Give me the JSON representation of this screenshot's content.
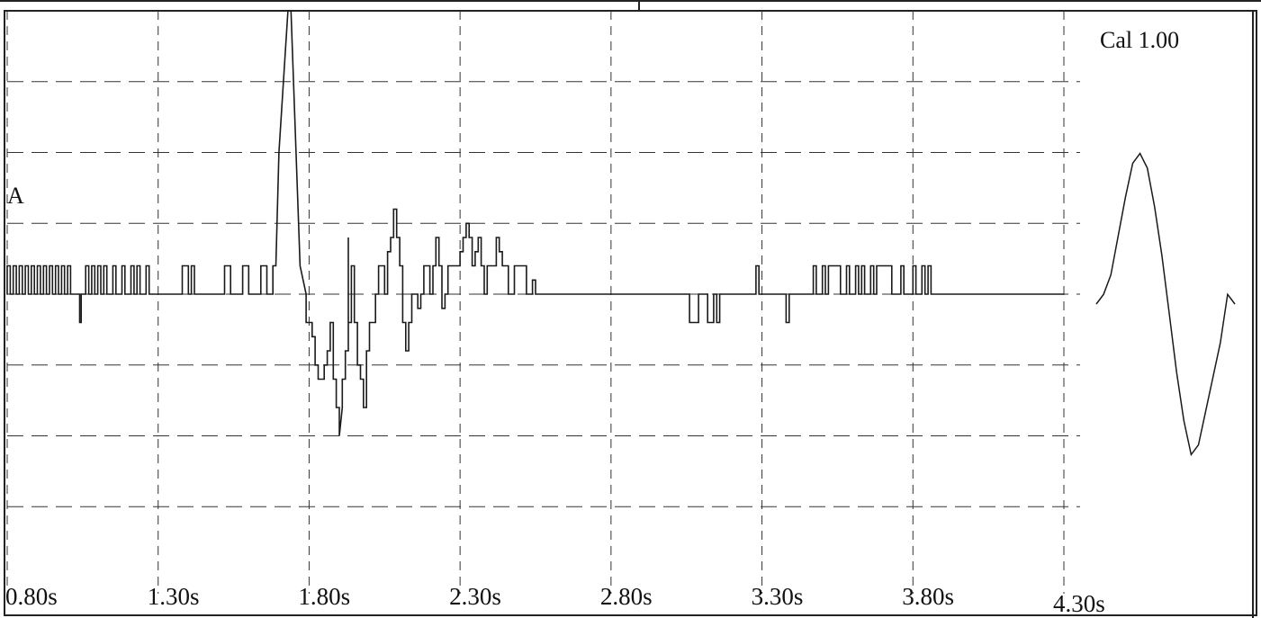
{
  "chart_data": {
    "type": "line",
    "trace_label": "A",
    "calibration_label": "Cal 1.00",
    "x_unit": "s",
    "xlim": [
      0.8,
      4.3
    ],
    "ylim": [
      -4.0,
      4.0
    ],
    "x_ticks": [
      0.8,
      1.3,
      1.8,
      2.3,
      2.8,
      3.3,
      3.8,
      4.3
    ],
    "x_tick_labels": [
      "0.80s",
      "1.30s",
      "1.80s",
      "2.30s",
      "2.80s",
      "3.30s",
      "3.80s",
      "4.30s"
    ],
    "grid": true,
    "grid_style": "dashed",
    "series": [
      {
        "values": [
          [
            0.8,
            0
          ],
          [
            0.8,
            0.4
          ],
          [
            0.81,
            0.4
          ],
          [
            0.81,
            0
          ],
          [
            0.82,
            0
          ],
          [
            0.82,
            0.4
          ],
          [
            0.83,
            0.4
          ],
          [
            0.83,
            0
          ],
          [
            0.84,
            0
          ],
          [
            0.84,
            0.4
          ],
          [
            0.85,
            0.4
          ],
          [
            0.85,
            0
          ],
          [
            0.86,
            0
          ],
          [
            0.86,
            0.4
          ],
          [
            0.87,
            0.4
          ],
          [
            0.87,
            0
          ],
          [
            0.88,
            0
          ],
          [
            0.88,
            0.4
          ],
          [
            0.89,
            0.4
          ],
          [
            0.89,
            0
          ],
          [
            0.9,
            0
          ],
          [
            0.9,
            0.4
          ],
          [
            0.91,
            0.4
          ],
          [
            0.91,
            0
          ],
          [
            0.92,
            0
          ],
          [
            0.92,
            0.4
          ],
          [
            0.93,
            0.4
          ],
          [
            0.93,
            0
          ],
          [
            0.94,
            0
          ],
          [
            0.94,
            0.4
          ],
          [
            0.95,
            0.4
          ],
          [
            0.95,
            0
          ],
          [
            0.96,
            0
          ],
          [
            0.96,
            0.4
          ],
          [
            0.97,
            0.4
          ],
          [
            0.97,
            0
          ],
          [
            0.98,
            0
          ],
          [
            0.98,
            0.4
          ],
          [
            0.99,
            0.4
          ],
          [
            0.99,
            0
          ],
          [
            1.0,
            0
          ],
          [
            1.0,
            0.4
          ],
          [
            1.01,
            0.4
          ],
          [
            1.01,
            0
          ],
          [
            1.04,
            0
          ],
          [
            1.04,
            -0.4
          ],
          [
            1.045,
            -0.4
          ],
          [
            1.045,
            0
          ],
          [
            1.06,
            0
          ],
          [
            1.06,
            0.4
          ],
          [
            1.07,
            0.4
          ],
          [
            1.07,
            0
          ],
          [
            1.08,
            0
          ],
          [
            1.08,
            0.4
          ],
          [
            1.09,
            0.4
          ],
          [
            1.09,
            0
          ],
          [
            1.1,
            0
          ],
          [
            1.1,
            0.4
          ],
          [
            1.11,
            0.4
          ],
          [
            1.11,
            0
          ],
          [
            1.12,
            0
          ],
          [
            1.12,
            0.4
          ],
          [
            1.13,
            0.4
          ],
          [
            1.13,
            0
          ],
          [
            1.15,
            0
          ],
          [
            1.15,
            0.4
          ],
          [
            1.16,
            0.4
          ],
          [
            1.16,
            0
          ],
          [
            1.18,
            0
          ],
          [
            1.18,
            0.4
          ],
          [
            1.19,
            0.4
          ],
          [
            1.19,
            0
          ],
          [
            1.21,
            0
          ],
          [
            1.21,
            0.4
          ],
          [
            1.22,
            0.4
          ],
          [
            1.22,
            0
          ],
          [
            1.23,
            0
          ],
          [
            1.23,
            0.4
          ],
          [
            1.24,
            0.4
          ],
          [
            1.24,
            0
          ],
          [
            1.26,
            0
          ],
          [
            1.26,
            0.4
          ],
          [
            1.27,
            0.4
          ],
          [
            1.27,
            0
          ],
          [
            1.38,
            0
          ],
          [
            1.38,
            0.4
          ],
          [
            1.4,
            0.4
          ],
          [
            1.4,
            0
          ],
          [
            1.41,
            0
          ],
          [
            1.41,
            0.4
          ],
          [
            1.42,
            0.4
          ],
          [
            1.42,
            0
          ],
          [
            1.52,
            0
          ],
          [
            1.52,
            0.4
          ],
          [
            1.54,
            0.4
          ],
          [
            1.54,
            0
          ],
          [
            1.58,
            0
          ],
          [
            1.58,
            0.4
          ],
          [
            1.6,
            0.4
          ],
          [
            1.6,
            0
          ],
          [
            1.64,
            0
          ],
          [
            1.64,
            0.4
          ],
          [
            1.66,
            0.4
          ],
          [
            1.66,
            0
          ],
          [
            1.68,
            0
          ],
          [
            1.68,
            0.4
          ],
          [
            1.69,
            0.4
          ],
          [
            1.7,
            2.0
          ],
          [
            1.73,
            4.0
          ],
          [
            1.74,
            4.0
          ],
          [
            1.77,
            0.4
          ],
          [
            1.79,
            0
          ],
          [
            1.79,
            -0.4
          ],
          [
            1.81,
            -0.4
          ],
          [
            1.81,
            -0.6
          ],
          [
            1.82,
            -0.6
          ],
          [
            1.82,
            -1.0
          ],
          [
            1.83,
            -1.0
          ],
          [
            1.83,
            -1.2
          ],
          [
            1.85,
            -1.2
          ],
          [
            1.85,
            -1.0
          ],
          [
            1.86,
            -1.0
          ],
          [
            1.86,
            -0.8
          ],
          [
            1.87,
            -0.8
          ],
          [
            1.87,
            -0.4
          ],
          [
            1.88,
            -0.4
          ],
          [
            1.88,
            -1.2
          ],
          [
            1.89,
            -1.2
          ],
          [
            1.89,
            -1.6
          ],
          [
            1.9,
            -1.6
          ],
          [
            1.9,
            -2.0
          ],
          [
            1.91,
            -1.6
          ],
          [
            1.91,
            -1.2
          ],
          [
            1.92,
            -1.2
          ],
          [
            1.92,
            -0.8
          ],
          [
            1.93,
            -0.8
          ],
          [
            1.93,
            0.8
          ],
          [
            1.93,
            -0.4
          ],
          [
            1.94,
            -0.4
          ],
          [
            1.94,
            0.4
          ],
          [
            1.95,
            0.4
          ],
          [
            1.95,
            -0.4
          ],
          [
            1.96,
            -0.4
          ],
          [
            1.96,
            -1.0
          ],
          [
            1.97,
            -1.0
          ],
          [
            1.97,
            -1.2
          ],
          [
            1.98,
            -1.2
          ],
          [
            1.98,
            -1.6
          ],
          [
            1.99,
            -1.6
          ],
          [
            1.99,
            -0.8
          ],
          [
            2.0,
            -0.8
          ],
          [
            2.0,
            -0.4
          ],
          [
            2.02,
            -0.4
          ],
          [
            2.02,
            0
          ],
          [
            2.03,
            0
          ],
          [
            2.03,
            0.4
          ],
          [
            2.05,
            0.4
          ],
          [
            2.05,
            0
          ],
          [
            2.06,
            0
          ],
          [
            2.06,
            0.6
          ],
          [
            2.07,
            0.6
          ],
          [
            2.07,
            0.8
          ],
          [
            2.08,
            0.8
          ],
          [
            2.08,
            1.2
          ],
          [
            2.09,
            1.2
          ],
          [
            2.09,
            0.8
          ],
          [
            2.1,
            0.8
          ],
          [
            2.1,
            0.4
          ],
          [
            2.11,
            0.4
          ],
          [
            2.11,
            -0.4
          ],
          [
            2.12,
            -0.4
          ],
          [
            2.12,
            -0.8
          ],
          [
            2.13,
            -0.8
          ],
          [
            2.13,
            -0.4
          ],
          [
            2.14,
            -0.4
          ],
          [
            2.14,
            0
          ],
          [
            2.16,
            0
          ],
          [
            2.16,
            -0.2
          ],
          [
            2.17,
            -0.2
          ],
          [
            2.17,
            0
          ],
          [
            2.18,
            0
          ],
          [
            2.18,
            0.4
          ],
          [
            2.2,
            0.4
          ],
          [
            2.2,
            0
          ],
          [
            2.21,
            0
          ],
          [
            2.21,
            0.4
          ],
          [
            2.22,
            0.4
          ],
          [
            2.22,
            0.8
          ],
          [
            2.23,
            0.8
          ],
          [
            2.23,
            0.4
          ],
          [
            2.24,
            0.4
          ],
          [
            2.24,
            -0.2
          ],
          [
            2.25,
            -0.2
          ],
          [
            2.25,
            0
          ],
          [
            2.26,
            0
          ],
          [
            2.26,
            0.4
          ],
          [
            2.3,
            0.4
          ],
          [
            2.3,
            0.6
          ],
          [
            2.31,
            0.6
          ],
          [
            2.31,
            0.8
          ],
          [
            2.32,
            0.8
          ],
          [
            2.32,
            1.0
          ],
          [
            2.33,
            1.0
          ],
          [
            2.33,
            0.8
          ],
          [
            2.34,
            0.8
          ],
          [
            2.34,
            0.4
          ],
          [
            2.35,
            0.4
          ],
          [
            2.35,
            0.6
          ],
          [
            2.36,
            0.6
          ],
          [
            2.36,
            0.8
          ],
          [
            2.37,
            0.8
          ],
          [
            2.37,
            0.4
          ],
          [
            2.38,
            0.4
          ],
          [
            2.38,
            0
          ],
          [
            2.39,
            0
          ],
          [
            2.39,
            0.4
          ],
          [
            2.42,
            0.4
          ],
          [
            2.42,
            0.8
          ],
          [
            2.43,
            0.8
          ],
          [
            2.43,
            0.6
          ],
          [
            2.44,
            0.6
          ],
          [
            2.44,
            0.4
          ],
          [
            2.46,
            0.4
          ],
          [
            2.46,
            0
          ],
          [
            2.48,
            0
          ],
          [
            2.48,
            0.4
          ],
          [
            2.52,
            0.4
          ],
          [
            2.52,
            0
          ],
          [
            2.54,
            0
          ],
          [
            2.54,
            0.2
          ],
          [
            2.55,
            0.2
          ],
          [
            2.55,
            0
          ],
          [
            2.6,
            0
          ],
          [
            2.8,
            0
          ],
          [
            3.06,
            0
          ],
          [
            3.06,
            -0.4
          ],
          [
            3.09,
            -0.4
          ],
          [
            3.09,
            0
          ],
          [
            3.12,
            0
          ],
          [
            3.12,
            -0.4
          ],
          [
            3.14,
            -0.4
          ],
          [
            3.14,
            0
          ],
          [
            3.15,
            0
          ],
          [
            3.15,
            -0.4
          ],
          [
            3.16,
            -0.4
          ],
          [
            3.16,
            0
          ],
          [
            3.28,
            0
          ],
          [
            3.28,
            0.4
          ],
          [
            3.29,
            0.4
          ],
          [
            3.29,
            0
          ],
          [
            3.38,
            0
          ],
          [
            3.38,
            -0.4
          ],
          [
            3.39,
            -0.4
          ],
          [
            3.39,
            0
          ],
          [
            3.47,
            0
          ],
          [
            3.47,
            0.4
          ],
          [
            3.48,
            0.4
          ],
          [
            3.48,
            0
          ],
          [
            3.5,
            0
          ],
          [
            3.5,
            0.4
          ],
          [
            3.51,
            0.4
          ],
          [
            3.51,
            0
          ],
          [
            3.52,
            0
          ],
          [
            3.52,
            0.4
          ],
          [
            3.56,
            0.4
          ],
          [
            3.56,
            0
          ],
          [
            3.58,
            0
          ],
          [
            3.58,
            0.4
          ],
          [
            3.59,
            0.4
          ],
          [
            3.59,
            0
          ],
          [
            3.61,
            0
          ],
          [
            3.61,
            0.4
          ],
          [
            3.62,
            0.4
          ],
          [
            3.62,
            0
          ],
          [
            3.63,
            0
          ],
          [
            3.63,
            0.4
          ],
          [
            3.64,
            0.4
          ],
          [
            3.64,
            0
          ],
          [
            3.66,
            0
          ],
          [
            3.66,
            0.4
          ],
          [
            3.67,
            0.4
          ],
          [
            3.67,
            0
          ],
          [
            3.68,
            0
          ],
          [
            3.68,
            0.4
          ],
          [
            3.73,
            0.4
          ],
          [
            3.73,
            0
          ],
          [
            3.76,
            0
          ],
          [
            3.76,
            0.4
          ],
          [
            3.77,
            0.4
          ],
          [
            3.77,
            0
          ],
          [
            3.8,
            0
          ],
          [
            3.8,
            0.4
          ],
          [
            3.81,
            0.4
          ],
          [
            3.81,
            0
          ],
          [
            3.83,
            0
          ],
          [
            3.83,
            0.4
          ],
          [
            3.84,
            0.4
          ],
          [
            3.84,
            0
          ],
          [
            3.85,
            0
          ],
          [
            3.85,
            0.4
          ],
          [
            3.86,
            0.4
          ],
          [
            3.86,
            0
          ],
          [
            4.3,
            0
          ]
        ]
      }
    ],
    "calibration_pulse": {
      "values": [
        0,
        0.2,
        0.6,
        1.4,
        2.2,
        2.9,
        3.1,
        2.8,
        2.0,
        1.0,
        -0.2,
        -1.4,
        -2.4,
        -3.1,
        -2.9,
        -2.2,
        -1.5,
        -0.8,
        0.2,
        0.0
      ]
    }
  }
}
